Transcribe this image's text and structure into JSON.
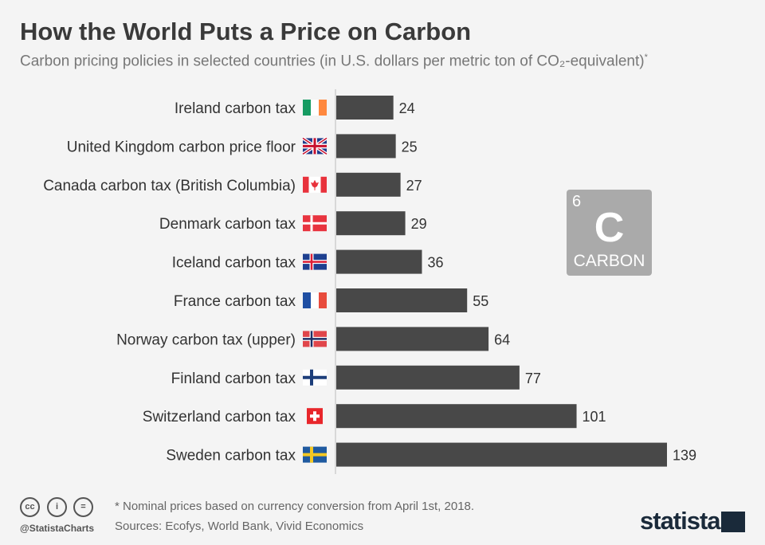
{
  "chart_data": {
    "type": "bar",
    "orientation": "horizontal",
    "title": "How the World Puts a Price on Carbon",
    "subtitle": "Carbon pricing policies in selected countries (in U.S. dollars per metric ton of CO₂-equivalent)",
    "subtitle_mark": "*",
    "categories": [
      "Ireland carbon tax",
      "United Kingdom carbon price floor",
      "Canada carbon tax (British Columbia)",
      "Denmark carbon tax",
      "Iceland carbon tax",
      "France carbon tax",
      "Norway carbon tax (upper)",
      "Finland carbon tax",
      "Switzerland carbon tax",
      "Sweden carbon tax"
    ],
    "values": [
      24,
      25,
      27,
      29,
      36,
      55,
      64,
      77,
      101,
      139
    ],
    "flags": [
      "ireland",
      "united-kingdom",
      "canada",
      "denmark",
      "iceland",
      "france",
      "norway",
      "finland",
      "switzerland",
      "sweden"
    ],
    "bar_color": "#484848",
    "grid": false
  },
  "element_key": {
    "number": "6",
    "symbol": "C",
    "name": "CARBON"
  },
  "footer": {
    "note": "* Nominal prices based on currency conversion from April 1st, 2018.",
    "sources": "Sources: Ecofys, World Bank, Vivid Economics",
    "handle": "@StatistaCharts",
    "logo": "statista",
    "license_icons": [
      "cc",
      "by",
      "nd"
    ]
  }
}
